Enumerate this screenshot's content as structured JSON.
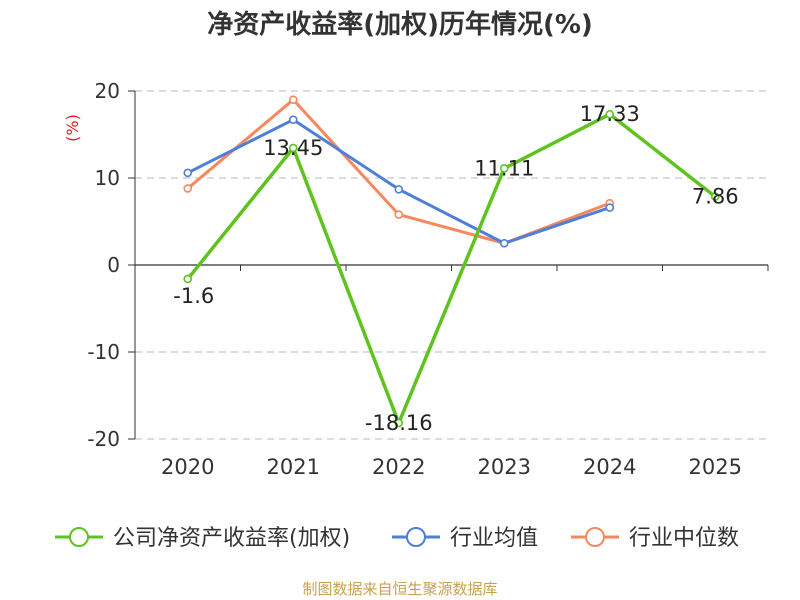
{
  "chart_data": {
    "type": "line",
    "title": "净资产收益率(加权)历年情况(%)",
    "ylabel": "(%)",
    "xlabel": "",
    "ylim": [
      -20,
      20
    ],
    "yticks": [
      20,
      10,
      0,
      -10,
      -20
    ],
    "grid": true,
    "legend_position": "bottom",
    "categories": [
      "2020",
      "2021",
      "2022",
      "2023",
      "2024",
      "2025"
    ],
    "series": [
      {
        "name": "公司净资产收益率(加权)",
        "color": "#5fc31f",
        "values": [
          -1.6,
          13.45,
          -18.16,
          11.11,
          17.33,
          7.86
        ],
        "labels": [
          "-1.6",
          "13.45",
          "-18.16",
          "11.11",
          "17.33",
          "7.86"
        ],
        "show_labels": true
      },
      {
        "name": "行业均值",
        "color": "#4f7fd8",
        "values": [
          10.6,
          16.7,
          8.7,
          2.5,
          6.6,
          null
        ],
        "show_labels": false
      },
      {
        "name": "行业中位数",
        "color": "#f7885e",
        "values": [
          8.8,
          19.0,
          5.8,
          2.5,
          7.1,
          null
        ],
        "show_labels": false
      }
    ]
  },
  "source": "制图数据来自恒生聚源数据库"
}
